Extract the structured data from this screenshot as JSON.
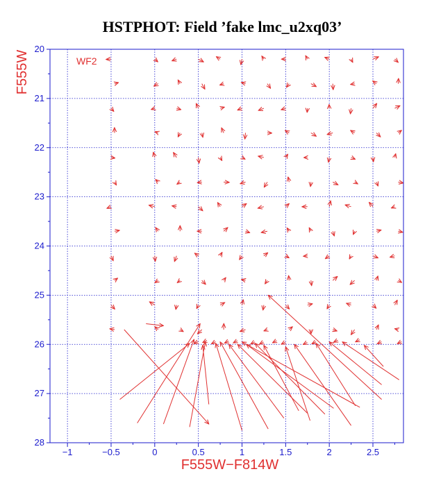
{
  "chart_data": {
    "type": "scatter",
    "title": "HSTPHOT: Field ’fake lmc_u2xq03’",
    "xlabel": "F555W−F814W",
    "ylabel": "F555W",
    "chip_label": "WF2",
    "xlim": [
      -1.2,
      2.85
    ],
    "ylim": [
      28,
      20
    ],
    "x_ticks": [
      -1,
      -0.5,
      0,
      0.5,
      1,
      1.5,
      2,
      2.5
    ],
    "x_tick_labels": [
      "−1",
      "−0.5",
      "0",
      "0.5",
      "1",
      "1.5",
      "2",
      "2.5"
    ],
    "y_ticks": [
      20,
      21,
      22,
      23,
      24,
      25,
      26,
      27,
      28
    ],
    "y_tick_labels": [
      "20",
      "21",
      "22",
      "23",
      "24",
      "25",
      "26",
      "27",
      "28"
    ],
    "grid": true,
    "marker_color": "#e03030",
    "axis_color": "#1a1acc",
    "grid_x_colors": [
      -0.5,
      0,
      0.25,
      0.5,
      0.75,
      1,
      1.25,
      1.5,
      1.75,
      2,
      2.25,
      2.5,
      2.75
    ],
    "grid_y_mags": [
      20.2,
      20.7,
      21.2,
      21.7,
      22.2,
      22.7,
      23.2,
      23.7,
      24.2,
      24.7,
      25.2,
      25.7
    ],
    "long_vectors": [
      {
        "x": 0.4,
        "y": 25.98,
        "x2": -0.4,
        "y2": 27.12
      },
      {
        "x": 0.52,
        "y": 25.58,
        "x2": -0.2,
        "y2": 27.6
      },
      {
        "x": 0.45,
        "y": 25.9,
        "x2": 0.1,
        "y2": 27.62
      },
      {
        "x": 0.58,
        "y": 25.95,
        "x2": 0.4,
        "y2": 27.68
      },
      {
        "x": 0.55,
        "y": 26.02,
        "x2": 0.62,
        "y2": 27.22
      },
      {
        "x": 0.7,
        "y": 25.98,
        "x2": 1.0,
        "y2": 27.75
      },
      {
        "x": 0.75,
        "y": 25.95,
        "x2": 1.3,
        "y2": 27.72
      },
      {
        "x": 0.85,
        "y": 26.0,
        "x2": 1.48,
        "y2": 27.5
      },
      {
        "x": 0.95,
        "y": 26.0,
        "x2": 1.75,
        "y2": 27.4
      },
      {
        "x": 1.0,
        "y": 25.95,
        "x2": 2.35,
        "y2": 27.28
      },
      {
        "x": 1.05,
        "y": 26.0,
        "x2": 2.05,
        "y2": 27.3
      },
      {
        "x": 1.15,
        "y": 25.98,
        "x2": 1.95,
        "y2": 27.42
      },
      {
        "x": 1.25,
        "y": 26.02,
        "x2": 1.65,
        "y2": 27.35
      },
      {
        "x": 1.3,
        "y": 25.0,
        "x2": 2.6,
        "y2": 27.12
      },
      {
        "x": 1.6,
        "y": 26.0,
        "x2": 2.25,
        "y2": 27.65
      },
      {
        "x": 1.85,
        "y": 25.98,
        "x2": 2.3,
        "y2": 27.25
      },
      {
        "x": 2.0,
        "y": 25.95,
        "x2": 2.6,
        "y2": 26.82
      },
      {
        "x": 2.15,
        "y": 25.95,
        "x2": 2.8,
        "y2": 26.72
      },
      {
        "x": 1.5,
        "y": 26.05,
        "x2": 1.78,
        "y2": 27.55
      },
      {
        "x": 2.4,
        "y": 26.02,
        "x2": 2.62,
        "y2": 26.45
      },
      {
        "x": 0.62,
        "y": 27.62,
        "x2": -0.35,
        "y2": 25.7
      },
      {
        "x": 0.1,
        "y": 25.62,
        "x2": -0.1,
        "y2": 25.58
      }
    ]
  }
}
